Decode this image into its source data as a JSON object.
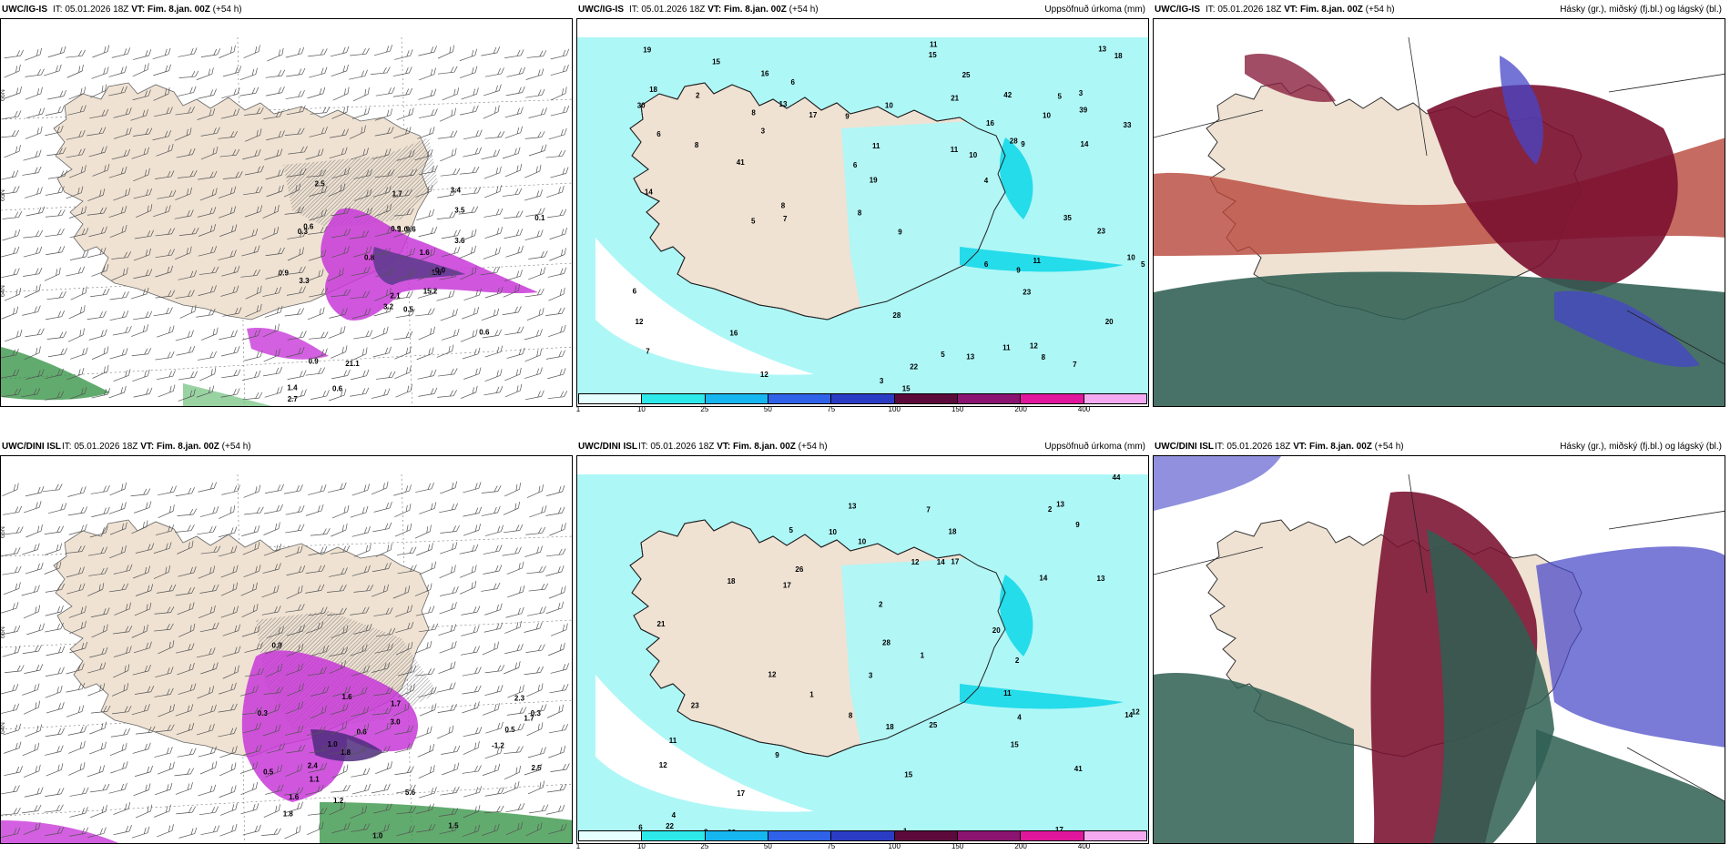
{
  "panels": [
    {
      "model": "UWC/IG-IS",
      "it_label": "IT:",
      "it_value": "05.01.2026 18Z",
      "vt_label": "VT:",
      "vt_value": "Fim. 8.jan. 00Z",
      "lead": "(+54 h)",
      "right_title": "",
      "kind": "precip"
    },
    {
      "model": "UWC/IG-IS",
      "it_label": "IT:",
      "it_value": "05.01.2026 18Z",
      "vt_label": "VT:",
      "vt_value": "Fim. 8.jan. 00Z",
      "lead": "(+54 h)",
      "right_title": "Uppsöfnuð úrkoma (mm)",
      "kind": "accum"
    },
    {
      "model": "UWC/IG-IS",
      "it_label": "IT:",
      "it_value": "05.01.2026 18Z",
      "vt_label": "VT:",
      "vt_value": "Fim. 8.jan. 00Z",
      "lead": "(+54 h)",
      "right_title": "Hásky (gr.), miðský (fj.bl.) og lágský (bl.)",
      "kind": "cloud"
    },
    {
      "model": "UWC/DINI ISL",
      "it_label": "IT:",
      "it_value": "05.01.2026 18Z",
      "vt_label": "VT:",
      "vt_value": "Fim. 8.jan. 00Z",
      "lead": "(+54 h)",
      "right_title": "",
      "kind": "precip"
    },
    {
      "model": "UWC/DINI ISL",
      "it_label": "IT:",
      "it_value": "05.01.2026 18Z",
      "vt_label": "VT:",
      "vt_value": "Fim. 8.jan. 00Z",
      "lead": "(+54 h)",
      "right_title": "Uppsöfnuð úrkoma (mm)",
      "kind": "accum"
    },
    {
      "model": "UWC/DINI ISL",
      "it_label": "IT:",
      "it_value": "05.01.2026 18Z",
      "vt_label": "VT:",
      "vt_value": "Fim. 8.jan. 00Z",
      "lead": "(+54 h)",
      "right_title": "Hásky (gr.), miðský (fj.bl.) og lágský (bl.)",
      "kind": "cloud"
    }
  ],
  "legend": {
    "ticks": [
      "1",
      "10",
      "25",
      "50",
      "75",
      "100",
      "150",
      "200",
      "400"
    ],
    "colors": [
      "#e6ffff",
      "#2ee9e9",
      "#16b6f0",
      "#2f62e8",
      "#2b3cc4",
      "#5b0a3a",
      "#8a1470",
      "#e0169c",
      "#f4aaf0"
    ]
  },
  "axis_labels": {
    "lat_66": "66N",
    "lat_65": "65N",
    "lat_64": "64N",
    "lon_15": "15W",
    "lon_20": "20W"
  },
  "colors": {
    "land": "#efe2d3",
    "precip_purple": "#c838d8",
    "precip_green": "#2e8f3e",
    "accum_cyan": "#aef7f7",
    "cloud_high": "#2f5f52",
    "cloud_mid": "#7a1030",
    "cloud_low": "#4646c8"
  },
  "precip_labels_top": [
    "0.5",
    "0.3",
    "2.1",
    "1.4",
    "1.6",
    "21.1",
    "3.4",
    "9.6",
    "3.5",
    "15.2",
    "2.5",
    "2.1",
    "3.3",
    "0.1",
    "3.2",
    "3.6",
    "0.6",
    "0.9",
    "1.6",
    "0.9",
    "0.8",
    "2.7",
    "0.6",
    "1.0",
    "0.0",
    "0.6",
    "0.6",
    "1.7",
    "0.9"
  ],
  "precip_labels_bottom": [
    "0.3",
    "0.6",
    "1.0",
    "1.1",
    "1.6",
    "3.0",
    "1.7",
    "1.8",
    "5.6",
    "2.4",
    "1.1",
    "2.3",
    "1.5",
    "0.5",
    "1.7",
    "1.0",
    "0.8",
    "0.3",
    "1.2",
    "-1.2",
    "1.8",
    "0.9",
    "0.5",
    "1.6",
    "2.5"
  ],
  "accum_labels_top": [
    "6",
    "3",
    "4",
    "3",
    "5",
    "7",
    "6",
    "7",
    "3",
    "5",
    "10",
    "13",
    "28",
    "16",
    "14",
    "12",
    "8",
    "9",
    "7",
    "5",
    "8",
    "23",
    "19",
    "28",
    "42",
    "41",
    "39",
    "25",
    "15",
    "5",
    "6",
    "13",
    "13",
    "8",
    "18",
    "16",
    "17",
    "21",
    "15",
    "12",
    "9",
    "8",
    "6",
    "12",
    "22",
    "33",
    "30",
    "35",
    "20",
    "11",
    "11",
    "10",
    "8",
    "9",
    "10",
    "6",
    "7",
    "23",
    "11",
    "11",
    "10",
    "19",
    "14",
    "18",
    "15",
    "2",
    "9",
    "11",
    "16"
  ],
  "accum_labels_bottom": [
    "2",
    "3",
    "4",
    "1",
    "2",
    "3",
    "1",
    "28",
    "17",
    "12",
    "10",
    "18",
    "18",
    "44",
    "41",
    "15",
    "26",
    "17",
    "14",
    "13",
    "15",
    "17",
    "21",
    "23",
    "12",
    "22",
    "18",
    "25",
    "17",
    "14",
    "12",
    "11",
    "13",
    "9",
    "11",
    "20",
    "23",
    "14",
    "12",
    "10",
    "6",
    "7",
    "8",
    "5",
    "13",
    "1",
    "2",
    "4",
    "3",
    "9"
  ]
}
